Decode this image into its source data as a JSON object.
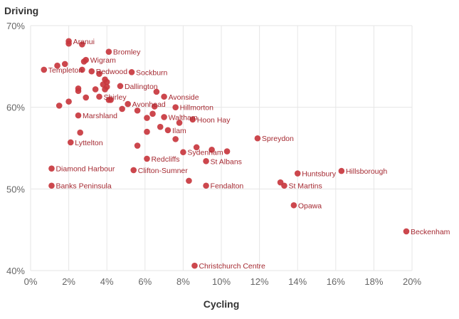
{
  "chart_data": {
    "type": "scatter",
    "xlabel": "Cycling",
    "ylabel": "Driving",
    "xlim": [
      0,
      20
    ],
    "ylim": [
      40,
      70
    ],
    "x_ticks": [
      0,
      2,
      4,
      6,
      8,
      10,
      12,
      14,
      16,
      18,
      20
    ],
    "y_ticks": [
      40,
      50,
      60,
      70
    ],
    "x_tick_labels": [
      "0%",
      "2%",
      "4%",
      "6%",
      "8%",
      "10%",
      "12%",
      "14%",
      "16%",
      "18%",
      "20%"
    ],
    "y_tick_labels": [
      "40%",
      "50%",
      "60%",
      "70%"
    ],
    "grid": true,
    "point_color": "#c8373e",
    "label_color": "#a52a32",
    "points": [
      {
        "x": 2.0,
        "y": 68.1,
        "label": "Aranui"
      },
      {
        "x": 4.1,
        "y": 66.8,
        "label": "Bromley"
      },
      {
        "x": 2.9,
        "y": 65.8,
        "label": "Wigram"
      },
      {
        "x": 0.7,
        "y": 64.6,
        "label": "Templeton"
      },
      {
        "x": 3.2,
        "y": 64.4,
        "label": "Redwood"
      },
      {
        "x": 5.3,
        "y": 64.3,
        "label": "Sockburn"
      },
      {
        "x": 4.7,
        "y": 62.6,
        "label": "Dallington"
      },
      {
        "x": 3.6,
        "y": 61.3,
        "label": "Shirley"
      },
      {
        "x": 7.0,
        "y": 61.3,
        "label": "Avonside"
      },
      {
        "x": 5.1,
        "y": 60.4,
        "label": "Avonhead"
      },
      {
        "x": 7.6,
        "y": 60.0,
        "label": "Hillmorton"
      },
      {
        "x": 2.5,
        "y": 59.0,
        "label": "Marshland"
      },
      {
        "x": 7.0,
        "y": 58.8,
        "label": "Waltham"
      },
      {
        "x": 8.5,
        "y": 58.5,
        "label": "Hoon Hay"
      },
      {
        "x": 11.9,
        "y": 56.2,
        "label": "Spreydon"
      },
      {
        "x": 2.1,
        "y": 55.7,
        "label": "Lyttelton"
      },
      {
        "x": 7.2,
        "y": 57.2,
        "label": "Ilam"
      },
      {
        "x": 8.0,
        "y": 54.5,
        "label": "Sydenham"
      },
      {
        "x": 6.1,
        "y": 53.7,
        "label": "Redcliffs"
      },
      {
        "x": 9.2,
        "y": 53.4,
        "label": "St Albans"
      },
      {
        "x": 1.1,
        "y": 52.5,
        "label": "Diamond Harbour"
      },
      {
        "x": 5.4,
        "y": 52.3,
        "label": "Clifton-Sumner"
      },
      {
        "x": 16.3,
        "y": 52.2,
        "label": "Hillsborough"
      },
      {
        "x": 14.0,
        "y": 51.9,
        "label": "Huntsbury"
      },
      {
        "x": 1.1,
        "y": 50.4,
        "label": "Banks Peninsula"
      },
      {
        "x": 9.2,
        "y": 50.4,
        "label": "Fendalton"
      },
      {
        "x": 13.3,
        "y": 50.4,
        "label": "St Martins"
      },
      {
        "x": 13.8,
        "y": 48.0,
        "label": "Opawa"
      },
      {
        "x": 19.7,
        "y": 44.8,
        "label": "Beckenham"
      },
      {
        "x": 8.6,
        "y": 40.6,
        "label": "Christchurch Centre"
      },
      {
        "x": 2.0,
        "y": 67.8,
        "label": ""
      },
      {
        "x": 2.7,
        "y": 67.7,
        "label": ""
      },
      {
        "x": 2.8,
        "y": 65.6,
        "label": ""
      },
      {
        "x": 1.4,
        "y": 65.1,
        "label": ""
      },
      {
        "x": 1.8,
        "y": 65.3,
        "label": ""
      },
      {
        "x": 2.7,
        "y": 64.6,
        "label": ""
      },
      {
        "x": 3.6,
        "y": 64.1,
        "label": ""
      },
      {
        "x": 3.9,
        "y": 63.4,
        "label": ""
      },
      {
        "x": 4.0,
        "y": 63.1,
        "label": ""
      },
      {
        "x": 3.8,
        "y": 62.8,
        "label": ""
      },
      {
        "x": 4.0,
        "y": 62.5,
        "label": ""
      },
      {
        "x": 3.9,
        "y": 62.2,
        "label": ""
      },
      {
        "x": 2.5,
        "y": 62.3,
        "label": ""
      },
      {
        "x": 2.5,
        "y": 62.0,
        "label": ""
      },
      {
        "x": 3.4,
        "y": 62.2,
        "label": ""
      },
      {
        "x": 6.6,
        "y": 61.9,
        "label": ""
      },
      {
        "x": 2.9,
        "y": 61.2,
        "label": ""
      },
      {
        "x": 4.1,
        "y": 60.9,
        "label": ""
      },
      {
        "x": 4.2,
        "y": 60.9,
        "label": ""
      },
      {
        "x": 2.0,
        "y": 60.7,
        "label": ""
      },
      {
        "x": 1.5,
        "y": 60.2,
        "label": ""
      },
      {
        "x": 6.5,
        "y": 60.1,
        "label": ""
      },
      {
        "x": 4.8,
        "y": 59.8,
        "label": ""
      },
      {
        "x": 5.6,
        "y": 59.6,
        "label": ""
      },
      {
        "x": 6.4,
        "y": 59.2,
        "label": ""
      },
      {
        "x": 6.1,
        "y": 58.7,
        "label": ""
      },
      {
        "x": 7.8,
        "y": 58.1,
        "label": ""
      },
      {
        "x": 6.8,
        "y": 57.6,
        "label": ""
      },
      {
        "x": 2.6,
        "y": 56.9,
        "label": ""
      },
      {
        "x": 6.1,
        "y": 57.0,
        "label": ""
      },
      {
        "x": 7.6,
        "y": 56.1,
        "label": ""
      },
      {
        "x": 5.6,
        "y": 55.3,
        "label": ""
      },
      {
        "x": 8.7,
        "y": 55.1,
        "label": ""
      },
      {
        "x": 9.5,
        "y": 54.8,
        "label": ""
      },
      {
        "x": 10.3,
        "y": 54.6,
        "label": ""
      },
      {
        "x": 8.3,
        "y": 51.0,
        "label": ""
      },
      {
        "x": 13.1,
        "y": 50.8,
        "label": ""
      }
    ]
  }
}
